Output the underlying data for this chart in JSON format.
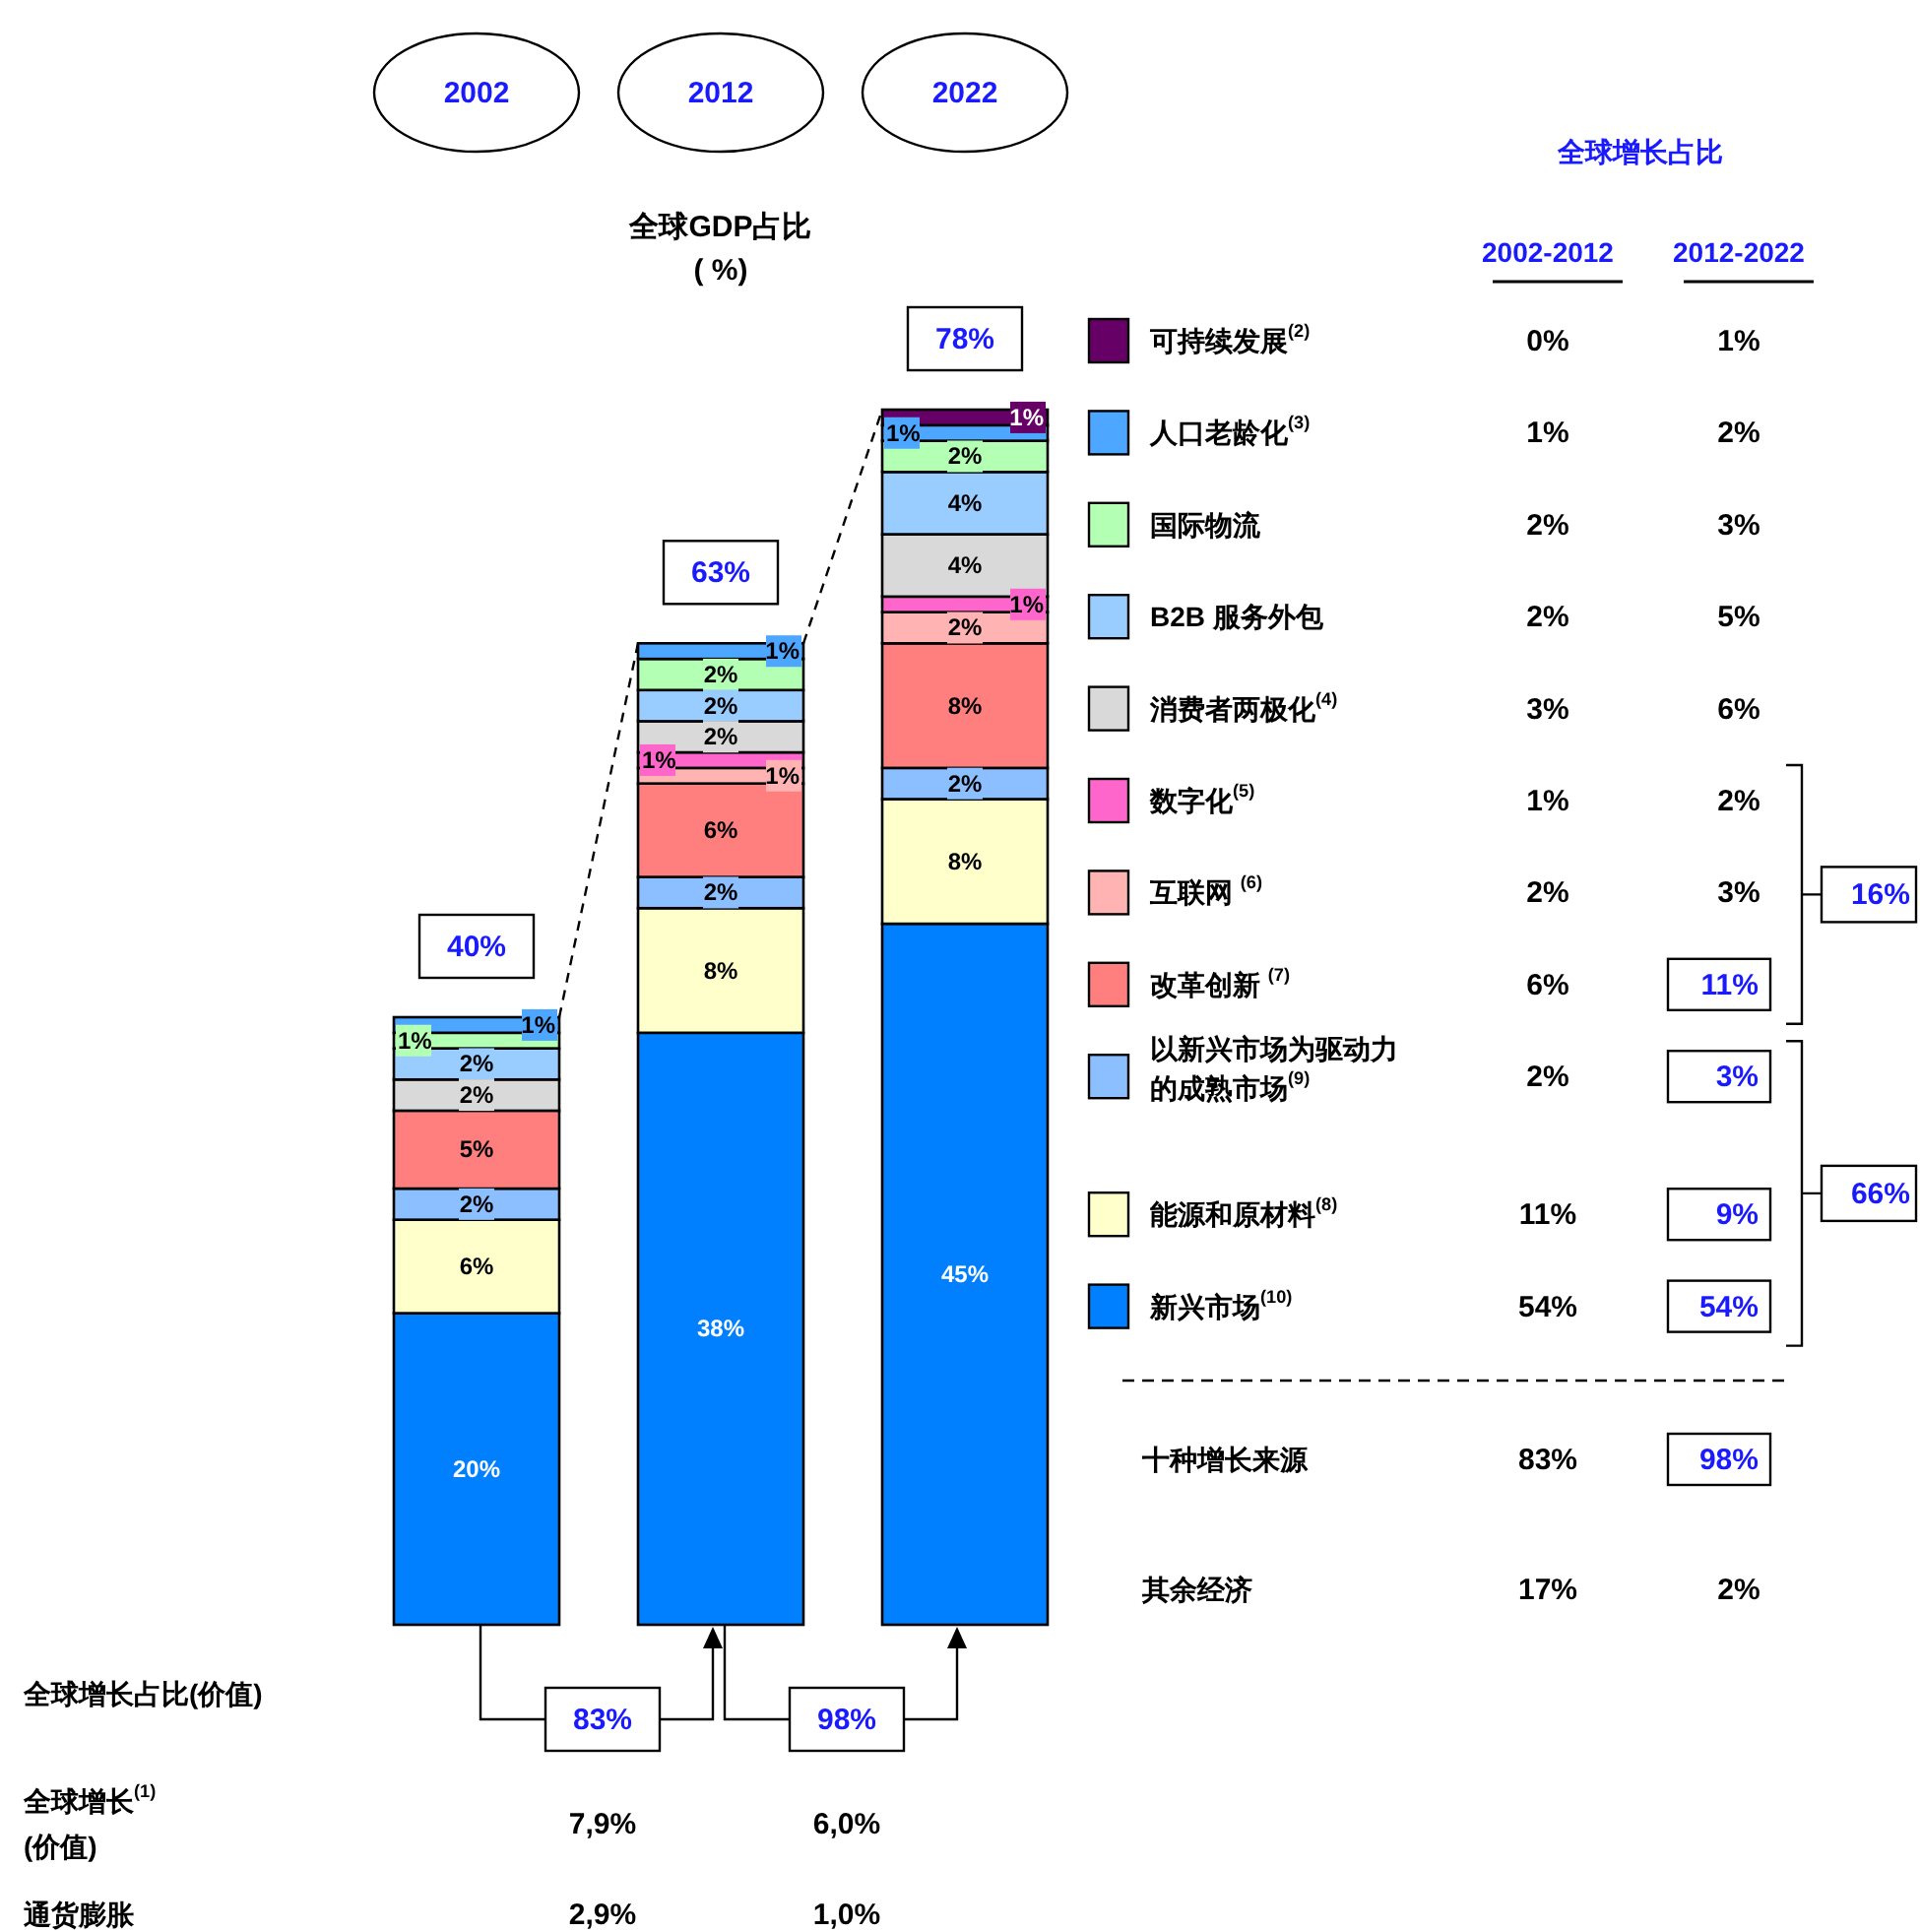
{
  "chart_data": [
    {
      "type": "bar",
      "stacked": true,
      "title": "全球GDP占比 ( %)",
      "categories": [
        "2002",
        "2012",
        "2022"
      ],
      "legend": "right",
      "totals": [
        "40%",
        "63%",
        "78%"
      ],
      "series": [
        {
          "name": "新兴市场$^{(10)}$",
          "color": "#0080ff",
          "values": [
            20,
            38,
            45
          ],
          "value_labels": [
            "20%",
            "38%",
            "45%"
          ]
        },
        {
          "name": "能源和原材料$^{(8)}$",
          "color": "#ffffcc",
          "values": [
            6,
            8,
            8
          ],
          "value_labels": [
            "6%",
            "8%",
            "8%"
          ]
        },
        {
          "name": "以新兴市场为驱动力的成熟市场$^{(9)}$",
          "color": "#8cbfff",
          "values": [
            2,
            2,
            2
          ],
          "value_labels": [
            "2%",
            "2%",
            "2%"
          ]
        },
        {
          "name": "改革创新 $^{(7)}$",
          "color": "#ff7f7f",
          "values": [
            5,
            6,
            8
          ],
          "value_labels": [
            "5%",
            "6%",
            "8%"
          ]
        },
        {
          "name": "互联网 $^{(6)}$",
          "color": "#ffb3b3",
          "values": [
            null,
            1,
            2
          ],
          "value_labels": [
            null,
            "1%",
            "2%"
          ]
        },
        {
          "name": "数字化$^{(5)}$",
          "color": "#ff66cc",
          "values": [
            null,
            1,
            1
          ],
          "value_labels": [
            null,
            "1%",
            "1%"
          ]
        },
        {
          "name": "消费者两极化$^{(4)}$",
          "color": "#d9d9d9",
          "values": [
            2,
            2,
            4
          ],
          "value_labels": [
            "2%",
            "2%",
            "4%"
          ]
        },
        {
          "name": "B2B 服务外包",
          "color": "#99ccff",
          "values": [
            2,
            2,
            4
          ],
          "value_labels": [
            "2%",
            "2%",
            "4%"
          ]
        },
        {
          "name": "国际物流",
          "color": "#b3ffb3",
          "values": [
            1,
            2,
            2
          ],
          "value_labels": [
            "1%",
            "2%",
            "2%"
          ]
        },
        {
          "name": "人口老龄化$^{(3)}$",
          "color": "#4da6ff",
          "values": [
            1,
            1,
            1
          ],
          "value_labels": [
            "1%",
            "1%",
            "1%"
          ]
        },
        {
          "name": "可持续发展$^{(2)}$",
          "color": "#660066",
          "values": [
            0,
            0,
            1
          ],
          "value_labels": [
            null,
            null,
            "1%"
          ]
        }
      ]
    },
    {
      "type": "other",
      "title": "全球增长占比",
      "categories": [
        "2002-2012",
        "2012-2022"
      ],
      "y_categories": [
        null,
        null,
        null,
        null,
        null,
        null,
        null,
        null,
        null,
        null,
        null,
        "十种增长来源",
        "其余经济"
      ],
      "cell_labels": [
        [
          "0%",
          "1%"
        ],
        [
          "1%",
          "2%"
        ],
        [
          "2%",
          "3%"
        ],
        [
          "2%",
          "5%"
        ],
        [
          "3%",
          "6%"
        ],
        [
          "1%",
          "2%"
        ],
        [
          "2%",
          "3%"
        ],
        [
          "6%",
          "11%"
        ],
        [
          "2%",
          "3%"
        ],
        [
          "11%",
          "9%"
        ],
        [
          "54%",
          "54%"
        ],
        [
          "83%",
          "98%"
        ],
        [
          "17%",
          "2%"
        ]
      ],
      "annotations": [
        "16%",
        "66%"
      ]
    },
    {
      "type": "other",
      "categories": [
        null,
        null
      ],
      "y_categories": [
        "全球增长占比(价值)",
        "全球增长$^{(1)}$ (价值)",
        "通货膨胀"
      ],
      "cell_labels": [
        [
          "83%",
          "98%"
        ],
        [
          "7,9%",
          "6,0%"
        ],
        [
          "2,9%",
          "1,0%"
        ]
      ]
    }
  ]
}
